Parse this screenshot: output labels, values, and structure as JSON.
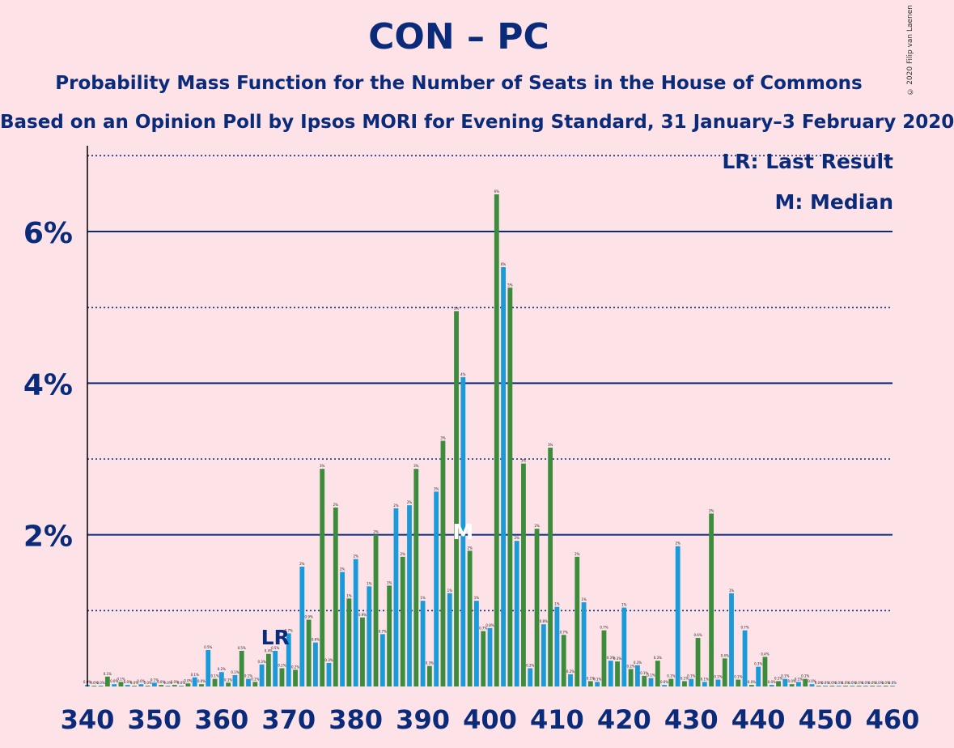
{
  "title": "CON – PC",
  "subtitle": "Probability Mass Function for the Number of Seats in the House of Commons",
  "subtitle2": "Based on an Opinion Poll by Ipsos MORI for Evening Standard, 31 January–3 February 2020",
  "copyright": "© 2020 Filip van Laenen",
  "legend": {
    "lr": "LR: Last Result",
    "median": "M: Median"
  },
  "colors": {
    "blue": "#1a9ad8",
    "green": "#3c8c3c",
    "axis": "#0a2a7a"
  },
  "chart_data": {
    "type": "bar",
    "x_start": 340,
    "values": [
      0.02,
      0.01,
      0.01,
      0.13,
      0.03,
      0.06,
      0.02,
      0.01,
      0.03,
      0.01,
      0.05,
      0.02,
      0.01,
      0.02,
      0.01,
      0.04,
      0.12,
      0.03,
      0.48,
      0.1,
      0.19,
      0.05,
      0.15,
      0.47,
      0.1,
      0.06,
      0.29,
      0.43,
      0.47,
      0.24,
      0.7,
      0.22,
      1.58,
      0.88,
      0.58,
      2.87,
      0.31,
      2.36,
      1.51,
      1.16,
      1.68,
      0.91,
      1.32,
      2.0,
      0.69,
      1.33,
      2.35,
      1.71,
      2.39,
      2.87,
      1.13,
      0.27,
      2.57,
      3.24,
      1.23,
      4.95,
      4.08,
      1.79,
      1.13,
      0.73,
      0.77,
      6.49,
      5.53,
      5.26,
      1.92,
      2.94,
      0.24,
      2.08,
      0.82,
      3.15,
      1.05,
      0.68,
      0.16,
      1.71,
      1.11,
      0.07,
      0.06,
      0.74,
      0.34,
      0.33,
      1.04,
      0.23,
      0.28,
      0.14,
      0.11,
      0.34,
      0.02,
      0.1,
      1.85,
      0.07,
      0.1,
      0.64,
      0.06,
      2.28,
      0.09,
      0.37,
      1.23,
      0.09,
      0.74,
      0.02,
      0.26,
      0.39,
      0.02,
      0.07,
      0.1,
      0.03,
      0.06,
      0.1,
      0.03,
      0.01,
      0.01,
      0.01,
      0.01,
      0.01,
      0.01,
      0.01,
      0.01,
      0.01,
      0.01,
      0.01,
      0.01
    ],
    "ylim": [
      0,
      7
    ],
    "y_ticks": [
      "2%",
      "4%",
      "6%"
    ],
    "x_ticks": [
      "340",
      "350",
      "360",
      "370",
      "380",
      "390",
      "400",
      "410",
      "420",
      "430",
      "440",
      "450",
      "460"
    ],
    "last_result": {
      "x": 368,
      "label": "LR"
    },
    "median": {
      "x": 396,
      "label": "M"
    },
    "grid": "solid lines every 2%, dotted lines at odd percentages"
  }
}
